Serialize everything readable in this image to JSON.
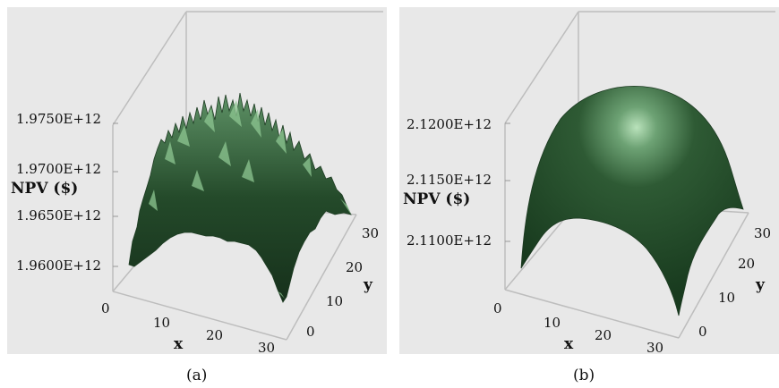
{
  "chart_data": [
    {
      "type": "surface",
      "caption": "(a)",
      "zlabel": "NPV ($)",
      "xlabel": "x",
      "ylabel": "y",
      "x_ticks": [
        "0",
        "10",
        "20",
        "30"
      ],
      "y_ticks": [
        "0",
        "10",
        "20",
        "30"
      ],
      "z_ticks": [
        "1.9600E+12",
        "1.9650E+12",
        "1.9700E+12",
        "1.9750E+12"
      ],
      "xlim": [
        0,
        30
      ],
      "ylim": [
        0,
        30
      ],
      "zlim": [
        1958000000000.0,
        1977000000000.0
      ],
      "surface": "dome, noisy",
      "peak_npv": 1975000000000.0,
      "color": "#2d5a33"
    },
    {
      "type": "surface",
      "caption": "(b)",
      "zlabel": "NPV ($)",
      "xlabel": "x",
      "ylabel": "y",
      "x_ticks": [
        "0",
        "10",
        "20",
        "30"
      ],
      "y_ticks": [
        "0",
        "10",
        "20",
        "30"
      ],
      "z_ticks": [
        "2.1100E+12",
        "2.1150E+12",
        "2.1200E+12"
      ],
      "xlim": [
        0,
        30
      ],
      "ylim": [
        0,
        30
      ],
      "zlim": [
        2108000000000.0,
        2123000000000.0
      ],
      "surface": "dome, smooth",
      "peak_npv": 2121500000000.0,
      "color": "#2d5a33"
    }
  ]
}
